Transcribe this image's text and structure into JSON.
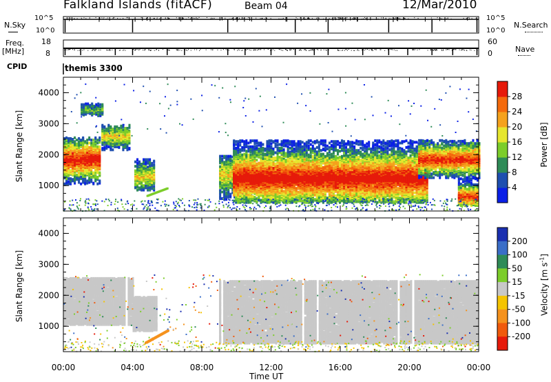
{
  "header": {
    "station": "Falkland Islands (fitACF)",
    "beam": "Beam 04",
    "date": "12/Mar/2010"
  },
  "side_labels": {
    "nsky": "N.Sky",
    "nsearch": "N.Search",
    "freq": "Freq.",
    "freq_unit": "[MHz]",
    "nave": "Nave",
    "cpid": "CPID",
    "cpid_value": "themis 3300"
  },
  "chart_data": {
    "type": "heatmap",
    "xlabel": "Time UT",
    "x_ticks": [
      "00:00",
      "04:00",
      "08:00",
      "12:00",
      "16:00",
      "20:00",
      "00:00"
    ],
    "xlim_hours": [
      0,
      24
    ],
    "ylabel": "Slant Range [km]",
    "ylim_km": [
      180,
      4500
    ],
    "y_ticks": [
      1000,
      2000,
      3000,
      4000
    ],
    "noise_panel": {
      "left_ticks": [
        "10^5",
        "10^0"
      ],
      "right_ticks": [
        "10^5",
        "10^0"
      ],
      "spike_hours": [
        0.1,
        4.0,
        9.5,
        13.4,
        15.3,
        18.8,
        21.3,
        23.9
      ]
    },
    "freq_panel": {
      "left_ticks": [
        "18",
        "8"
      ],
      "right_ticks": [
        "60",
        "0"
      ],
      "level_mhz": 11,
      "dip_hours": [
        0.1,
        1.0,
        3.0,
        4.0,
        6.0,
        7.0,
        9.5,
        10.5,
        12.0,
        13.4,
        14.5,
        15.3,
        17.3,
        18.8,
        19.9,
        21.3,
        22.5,
        23.9
      ]
    },
    "power_panel": {
      "colorbar_label": "Power [dB]",
      "colorbar_ticks": [
        "4",
        "8",
        "12",
        "16",
        "20",
        "24",
        "28"
      ],
      "colors": [
        "#0a1fe6",
        "#1e4fb0",
        "#2e8b57",
        "#7ccd2a",
        "#e6e62e",
        "#f5a21d",
        "#f46a0c",
        "#e61a0a"
      ],
      "regions": [
        {
          "t0": 0.0,
          "t1": 2.1,
          "r0": 1100,
          "r1": 2600,
          "core": 1900,
          "peak": 0.9
        },
        {
          "t0": 1.0,
          "t1": 2.3,
          "r0": 3300,
          "r1": 3700,
          "core": 3500,
          "peak": 0.3
        },
        {
          "t0": 2.2,
          "t1": 3.8,
          "r0": 2200,
          "r1": 3000,
          "core": 2650,
          "peak": 0.5
        },
        {
          "t0": 4.1,
          "t1": 5.3,
          "r0": 900,
          "r1": 1900,
          "core": 1350,
          "peak": 0.5
        },
        {
          "t0": 9.0,
          "t1": 10.8,
          "r0": 600,
          "r1": 2000,
          "core": 1400,
          "peak": 0.5
        },
        {
          "t0": 9.8,
          "t1": 21.0,
          "r0": 500,
          "r1": 2500,
          "core": 1300,
          "peak": 0.95
        },
        {
          "t0": 20.5,
          "t1": 24.0,
          "r0": 1300,
          "r1": 2500,
          "core": 1900,
          "peak": 0.85
        },
        {
          "t0": 22.8,
          "t1": 24.0,
          "r0": 400,
          "r1": 1300,
          "core": 700,
          "peak": 0.85
        }
      ]
    },
    "velocity_panel": {
      "colorbar_label": "Velocity [m s-1]",
      "colorbar_ticks": [
        "200",
        "100",
        "50",
        "15",
        "-15",
        "-50",
        "-100",
        "-200"
      ],
      "colors": [
        "#1a2fb0",
        "#3a6ec8",
        "#2e8b57",
        "#7ccd2a",
        "#c8c8c8",
        "#f5c400",
        "#f5921d",
        "#f05a0c",
        "#e61a0a"
      ],
      "ground_scatter_color": "#c8c8c8",
      "regions": [
        {
          "t0": 0.0,
          "t1": 4.0,
          "r0": 1100,
          "r1": 2600
        },
        {
          "t0": 4.0,
          "t1": 5.4,
          "r0": 900,
          "r1": 2000
        },
        {
          "t0": 9.0,
          "t1": 24.0,
          "r0": 500,
          "r1": 2500
        }
      ],
      "orange_streak": {
        "t0": 4.7,
        "t1": 6.0,
        "r0": 500,
        "r1": 900
      }
    }
  }
}
